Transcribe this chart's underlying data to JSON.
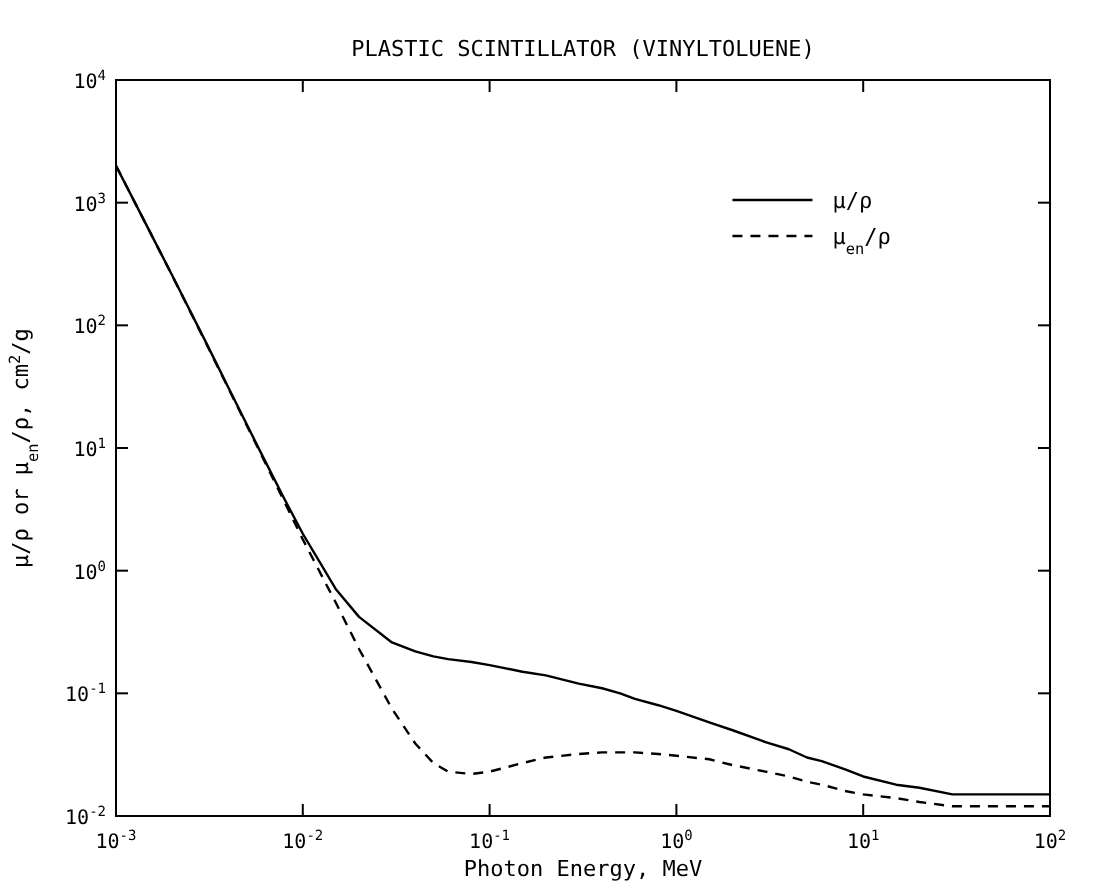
{
  "chart_data": {
    "type": "line",
    "title": "PLASTIC SCINTILLATOR (VINYLTOLUENE)",
    "xlabel": "Photon Energy, MeV",
    "ylabel": "μ/ρ or μ$_{en}$/ρ, cm$^{2}$/g",
    "log": "xy",
    "legend": "top right",
    "grid": false,
    "xlim": [
      0.001,
      100
    ],
    "ylim": [
      0.01,
      10000
    ],
    "xticks": [
      {
        "value": 0.001,
        "label": "10$^{-3}$"
      },
      {
        "value": 0.01,
        "label": "10$^{-2}$"
      },
      {
        "value": 0.1,
        "label": "10$^{-1}$"
      },
      {
        "value": 1,
        "label": "10$^{0}$"
      },
      {
        "value": 10,
        "label": "10$^{1}$"
      },
      {
        "value": 100,
        "label": "10$^{2}$"
      }
    ],
    "yticks": [
      {
        "value": 0.01,
        "label": "10$^{-2}$"
      },
      {
        "value": 0.1,
        "label": "10$^{-1}$"
      },
      {
        "value": 1,
        "label": "10$^{0}$"
      },
      {
        "value": 10,
        "label": "10$^{1}$"
      },
      {
        "value": 100,
        "label": "10$^{2}$"
      },
      {
        "value": 1000,
        "label": "10$^{3}$"
      },
      {
        "value": 10000,
        "label": "10$^{4}$"
      }
    ],
    "x": [
      0.001,
      0.0015,
      0.002,
      0.003,
      0.004,
      0.005,
      0.006,
      0.008,
      0.01,
      0.015,
      0.02,
      0.03,
      0.04,
      0.05,
      0.06,
      0.08,
      0.1,
      0.15,
      0.2,
      0.3,
      0.4,
      0.5,
      0.6,
      0.8,
      1,
      1.5,
      2,
      3,
      4,
      5,
      6,
      8,
      10,
      15,
      20,
      30,
      40,
      50,
      60,
      80,
      100
    ],
    "series": [
      {
        "name": "μ/ρ",
        "color": "#000000",
        "line_style": "solid",
        "values": [
          2000,
          600,
          255,
          75,
          31,
          15.7,
          9,
          3.8,
          2,
          0.71,
          0.42,
          0.26,
          0.22,
          0.2,
          0.19,
          0.18,
          0.17,
          0.15,
          0.14,
          0.12,
          0.11,
          0.1,
          0.09,
          0.08,
          0.072,
          0.058,
          0.05,
          0.04,
          0.035,
          0.03,
          0.028,
          0.024,
          0.021,
          0.018,
          0.017,
          0.015,
          0.015,
          0.015,
          0.015,
          0.015,
          0.015
        ]
      },
      {
        "name": "μ$_{en}$/ρ",
        "color": "#000000",
        "line_style": "dashed",
        "values": [
          2000,
          600,
          254,
          74,
          30.6,
          15.4,
          8.8,
          3.6,
          1.8,
          0.55,
          0.23,
          0.075,
          0.039,
          0.027,
          0.023,
          0.022,
          0.023,
          0.027,
          0.03,
          0.032,
          0.033,
          0.033,
          0.033,
          0.032,
          0.031,
          0.029,
          0.026,
          0.023,
          0.021,
          0.019,
          0.018,
          0.016,
          0.015,
          0.014,
          0.013,
          0.012,
          0.012,
          0.012,
          0.012,
          0.012,
          0.012
        ]
      }
    ]
  }
}
